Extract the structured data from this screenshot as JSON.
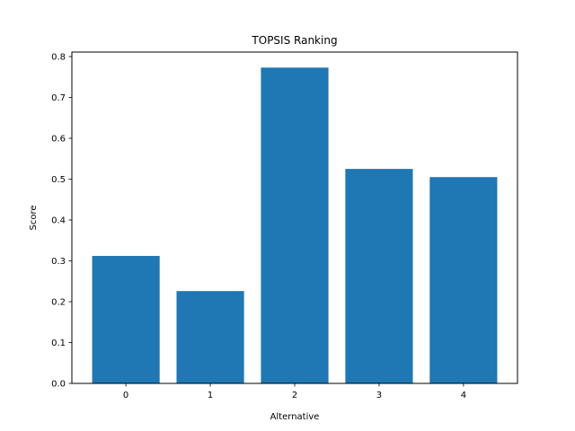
{
  "chart_data": {
    "type": "bar",
    "title": "TOPSIS Ranking",
    "xlabel": "Alternative",
    "ylabel": "Score",
    "categories": [
      "0",
      "1",
      "2",
      "3",
      "4"
    ],
    "values": [
      0.312,
      0.226,
      0.773,
      0.525,
      0.505
    ],
    "ylim": [
      0,
      0.811
    ],
    "yticks": [
      "0.0",
      "0.1",
      "0.2",
      "0.3",
      "0.4",
      "0.5",
      "0.6",
      "0.7",
      "0.8"
    ],
    "grid": false,
    "legend": "none",
    "bar_color": "#1f77b4"
  }
}
